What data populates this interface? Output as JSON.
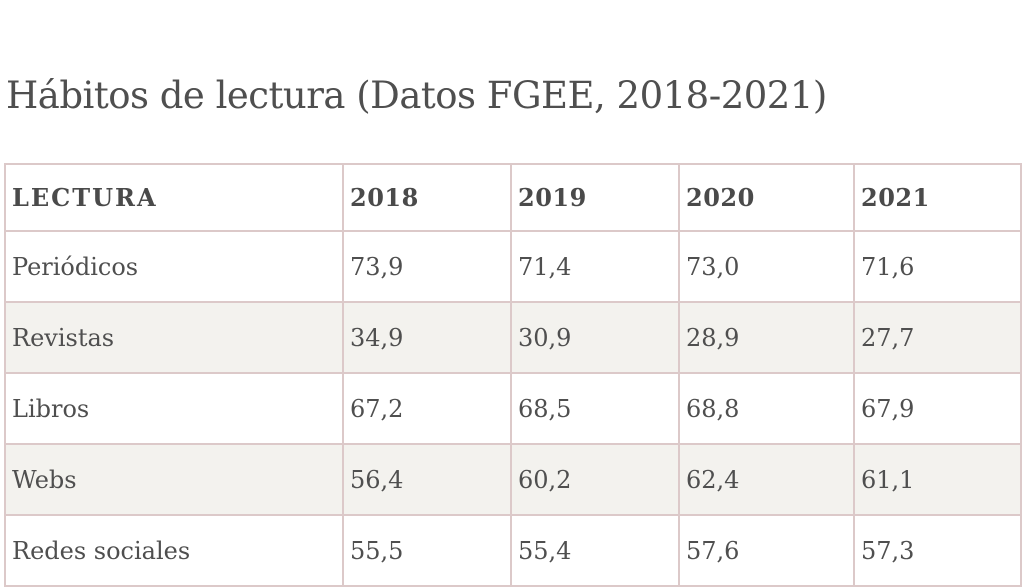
{
  "title": "Hábitos de lectura (Datos FGEE, 2018-2021)",
  "table": {
    "headers": [
      "LECTURA",
      "2018",
      "2019",
      "2020",
      "2021"
    ],
    "rows": [
      [
        "Periódicos",
        "73,9",
        "71,4",
        "73,0",
        "71,6"
      ],
      [
        "Revistas",
        "34,9",
        "30,9",
        "28,9",
        "27,7"
      ],
      [
        "Libros",
        "67,2",
        "68,5",
        "68,8",
        "67,9"
      ],
      [
        "Webs",
        "56,4",
        "60,2",
        "62,4",
        "61,1"
      ],
      [
        "Redes sociales",
        "55,5",
        "55,4",
        "57,6",
        "57,3"
      ]
    ]
  },
  "colors": {
    "text": "#4f4f4f",
    "border": "#dcc9c9",
    "alt_row_bg": "#f3f2ee"
  },
  "chart_data": {
    "type": "table",
    "title": "Hábitos de lectura (Datos FGEE, 2018-2021)",
    "columns": [
      "LECTURA",
      "2018",
      "2019",
      "2020",
      "2021"
    ],
    "categories": [
      "Periódicos",
      "Revistas",
      "Libros",
      "Webs",
      "Redes sociales"
    ],
    "x": [
      2018,
      2019,
      2020,
      2021
    ],
    "series": [
      {
        "name": "Periódicos",
        "values": [
          73.9,
          71.4,
          73.0,
          71.6
        ]
      },
      {
        "name": "Revistas",
        "values": [
          34.9,
          30.9,
          28.9,
          27.7
        ]
      },
      {
        "name": "Libros",
        "values": [
          67.2,
          68.5,
          68.8,
          67.9
        ]
      },
      {
        "name": "Webs",
        "values": [
          56.4,
          60.2,
          62.4,
          61.1
        ]
      },
      {
        "name": "Redes sociales",
        "values": [
          55.5,
          55.4,
          57.6,
          57.3
        ]
      }
    ]
  }
}
